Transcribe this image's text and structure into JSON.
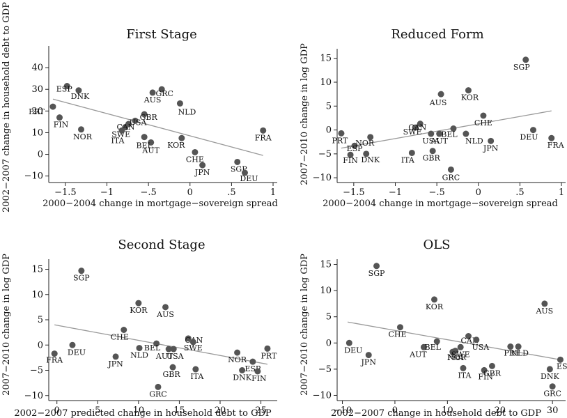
{
  "chart_data": [
    {
      "id": "first-stage",
      "type": "scatter",
      "title": "First Stage",
      "xlabel": "2000−2004 change in mortgage−sovereign spread",
      "ylabel": "2002−2007 change in household debt to GDP",
      "xlim": [
        -1.7,
        1.05
      ],
      "ylim": [
        -13,
        50
      ],
      "xticks": [
        -1.5,
        -1,
        -0.5,
        0,
        0.5,
        1
      ],
      "xtick_labels": [
        "−1.5",
        "−1",
        "−.5",
        "0",
        ".5",
        "1"
      ],
      "yticks": [
        -10,
        0,
        10,
        20,
        30,
        40
      ],
      "ytick_labels": [
        "−10",
        "0",
        "10",
        "20",
        "30",
        "40"
      ],
      "fit_line": [
        [
          -1.65,
          25.5
        ],
        [
          0.88,
          -0.5
        ]
      ],
      "points": [
        {
          "label": "PRT",
          "x": -1.65,
          "y": 22.0
        },
        {
          "label": "ESP",
          "x": -1.48,
          "y": 31.5
        },
        {
          "label": "DNK",
          "x": -1.34,
          "y": 29.5
        },
        {
          "label": "FIN",
          "x": -1.57,
          "y": 17.0
        },
        {
          "label": "NOR",
          "x": -1.31,
          "y": 11.5
        },
        {
          "label": "SWE",
          "x": -0.78,
          "y": 12.5
        },
        {
          "label": "CAN",
          "x": -0.74,
          "y": 14.0
        },
        {
          "label": "ITA",
          "x": -0.82,
          "y": 11.0
        },
        {
          "label": "USA",
          "x": -0.66,
          "y": 15.5
        },
        {
          "label": "GBR",
          "x": -0.55,
          "y": 18.5
        },
        {
          "label": "AUS",
          "x": -0.45,
          "y": 28.5
        },
        {
          "label": "GRC",
          "x": -0.34,
          "y": 30.0
        },
        {
          "label": "NLD",
          "x": -0.12,
          "y": 23.5
        },
        {
          "label": "AUT",
          "x": -0.47,
          "y": 5.5
        },
        {
          "label": "BEL",
          "x": -0.55,
          "y": 8.0
        },
        {
          "label": "KOR",
          "x": -0.1,
          "y": 7.5
        },
        {
          "label": "CHE",
          "x": 0.06,
          "y": 1.0
        },
        {
          "label": "JPN",
          "x": 0.15,
          "y": -5.0
        },
        {
          "label": "SGP",
          "x": 0.57,
          "y": -3.5
        },
        {
          "label": "DEU",
          "x": 0.66,
          "y": -8.5
        },
        {
          "label": "FRA",
          "x": 0.88,
          "y": 11.0
        }
      ]
    },
    {
      "id": "reduced-form",
      "type": "scatter",
      "title": "Reduced Form",
      "xlabel": "2000−2004 change in mortgage−sovereign spread",
      "ylabel": "2007−2010 change in log GDP",
      "xlim": [
        -1.7,
        1.05
      ],
      "ylim": [
        -11,
        17
      ],
      "xticks": [
        -1.5,
        -1,
        -0.5,
        0,
        0.5,
        1
      ],
      "xtick_labels": [
        "−1.5",
        "−1",
        "−.5",
        "0",
        ".5",
        "1"
      ],
      "yticks": [
        -10,
        -5,
        0,
        5,
        10,
        15
      ],
      "ytick_labels": [
        "−10",
        "−5",
        "0",
        "5",
        "10",
        "15"
      ],
      "fit_line": [
        [
          -1.65,
          -3.8
        ],
        [
          0.88,
          4.0
        ]
      ],
      "points": [
        {
          "label": "PRT",
          "x": -1.65,
          "y": -0.7
        },
        {
          "label": "ESP",
          "x": -1.49,
          "y": -3.3
        },
        {
          "label": "FIN",
          "x": -1.54,
          "y": -5.2
        },
        {
          "label": "DNK",
          "x": -1.35,
          "y": -5.0
        },
        {
          "label": "NOR",
          "x": -1.3,
          "y": -1.5
        },
        {
          "label": "SWE",
          "x": -0.76,
          "y": 0.5
        },
        {
          "label": "CAN",
          "x": -0.7,
          "y": 1.3
        },
        {
          "label": "USA",
          "x": -0.57,
          "y": -0.8
        },
        {
          "label": "AUT",
          "x": -0.47,
          "y": -0.8
        },
        {
          "label": "ITA",
          "x": -0.8,
          "y": -4.8
        },
        {
          "label": "GBR",
          "x": -0.55,
          "y": -4.4
        },
        {
          "label": "GRC",
          "x": -0.33,
          "y": -8.3
        },
        {
          "label": "BEL",
          "x": -0.3,
          "y": 0.3
        },
        {
          "label": "AUS",
          "x": -0.45,
          "y": 7.5
        },
        {
          "label": "KOR",
          "x": -0.12,
          "y": 8.3
        },
        {
          "label": "NLD",
          "x": -0.15,
          "y": -0.8
        },
        {
          "label": "CHE",
          "x": 0.06,
          "y": 3.0
        },
        {
          "label": "JPN",
          "x": 0.15,
          "y": -2.3
        },
        {
          "label": "SGP",
          "x": 0.57,
          "y": 14.7
        },
        {
          "label": "DEU",
          "x": 0.66,
          "y": 0.0
        },
        {
          "label": "FRA",
          "x": 0.88,
          "y": -1.7
        }
      ]
    },
    {
      "id": "second-stage",
      "type": "scatter",
      "title": "Second Stage",
      "xlabel": "2002−2007 predicted change in household debt to GDP",
      "ylabel": "2007−2010 change in log GDP",
      "xlim": [
        -1,
        27
      ],
      "ylim": [
        -11,
        17
      ],
      "xticks": [
        0,
        5,
        10,
        15,
        20,
        25
      ],
      "xtick_labels": [
        "0",
        "5",
        "10",
        "15",
        "20",
        "25"
      ],
      "yticks": [
        -10,
        -5,
        0,
        5,
        10,
        15
      ],
      "ytick_labels": [
        "−10",
        "−5",
        "0",
        "5",
        "10",
        "15"
      ],
      "fit_line": [
        [
          -0.3,
          4.0
        ],
        [
          25.8,
          -3.8
        ]
      ],
      "points": [
        {
          "label": "FRA",
          "x": -0.3,
          "y": -1.7
        },
        {
          "label": "DEU",
          "x": 1.9,
          "y": 0.0
        },
        {
          "label": "SGP",
          "x": 3.0,
          "y": 14.7
        },
        {
          "label": "JPN",
          "x": 7.2,
          "y": -2.3
        },
        {
          "label": "CHE",
          "x": 8.2,
          "y": 3.0
        },
        {
          "label": "KOR",
          "x": 10.0,
          "y": 8.3
        },
        {
          "label": "NLD",
          "x": 10.1,
          "y": -0.6
        },
        {
          "label": "BEL",
          "x": 12.2,
          "y": 0.3
        },
        {
          "label": "AUS",
          "x": 13.3,
          "y": 7.5
        },
        {
          "label": "AUT",
          "x": 13.7,
          "y": -0.8
        },
        {
          "label": "USA",
          "x": 14.3,
          "y": -0.8
        },
        {
          "label": "GBR",
          "x": 14.2,
          "y": -4.4
        },
        {
          "label": "GRC",
          "x": 12.4,
          "y": -8.3
        },
        {
          "label": "CAN",
          "x": 16.1,
          "y": 1.3
        },
        {
          "label": "SWE",
          "x": 16.7,
          "y": 0.6
        },
        {
          "label": "ITA",
          "x": 17.0,
          "y": -4.8
        },
        {
          "label": "NOR",
          "x": 22.1,
          "y": -1.5
        },
        {
          "label": "DNK",
          "x": 22.7,
          "y": -5.0
        },
        {
          "label": "ESP",
          "x": 24.0,
          "y": -3.3
        },
        {
          "label": "FIN",
          "x": 24.6,
          "y": -5.2
        },
        {
          "label": "PRT",
          "x": 25.8,
          "y": -0.7
        }
      ]
    },
    {
      "id": "ols",
      "type": "scatter",
      "title": "OLS",
      "xlabel": "2002−2007 change in household debt to GDP",
      "ylabel": "2007−2010 change in log GDP",
      "xlim": [
        -11,
        32.5
      ],
      "ylim": [
        -11,
        16
      ],
      "xticks": [
        -10,
        0,
        10,
        20,
        30
      ],
      "xtick_labels": [
        "−10",
        "0",
        "10",
        "20",
        "30"
      ],
      "yticks": [
        -10,
        -5,
        0,
        5,
        10,
        15
      ],
      "ytick_labels": [
        "−10",
        "−5",
        "0",
        "5",
        "10",
        "15"
      ],
      "fit_line": [
        [
          -9.0,
          4.0
        ],
        [
          31.5,
          -3.2
        ]
      ],
      "points": [
        {
          "label": "DEU",
          "x": -8.7,
          "y": 0.0
        },
        {
          "label": "JPN",
          "x": -5.0,
          "y": -2.3
        },
        {
          "label": "SGP",
          "x": -3.5,
          "y": 14.7
        },
        {
          "label": "CHE",
          "x": 1.0,
          "y": 3.0
        },
        {
          "label": "AUT",
          "x": 5.5,
          "y": -0.8
        },
        {
          "label": "BEL",
          "x": 8.0,
          "y": 0.3
        },
        {
          "label": "KOR",
          "x": 7.5,
          "y": 8.3
        },
        {
          "label": "FRA",
          "x": 11.0,
          "y": -1.7
        },
        {
          "label": "NOR",
          "x": 11.5,
          "y": -1.5
        },
        {
          "label": "ITA",
          "x": 13.0,
          "y": -4.8
        },
        {
          "label": "SWE",
          "x": 12.5,
          "y": -0.8
        },
        {
          "label": "CAN",
          "x": 14.0,
          "y": 1.3
        },
        {
          "label": "USA",
          "x": 15.5,
          "y": 0.6
        },
        {
          "label": "FIN",
          "x": 17.0,
          "y": -5.2
        },
        {
          "label": "GBR",
          "x": 18.5,
          "y": -4.4
        },
        {
          "label": "GRC",
          "x": 30.0,
          "y": -8.3
        },
        {
          "label": "PRT",
          "x": 22.0,
          "y": -0.7
        },
        {
          "label": "NLD",
          "x": 23.5,
          "y": -0.7
        },
        {
          "label": "AUS",
          "x": 28.5,
          "y": 7.5
        },
        {
          "label": "DNK",
          "x": 29.5,
          "y": -5.0
        },
        {
          "label": "ESP",
          "x": 31.5,
          "y": -3.2
        }
      ]
    }
  ]
}
